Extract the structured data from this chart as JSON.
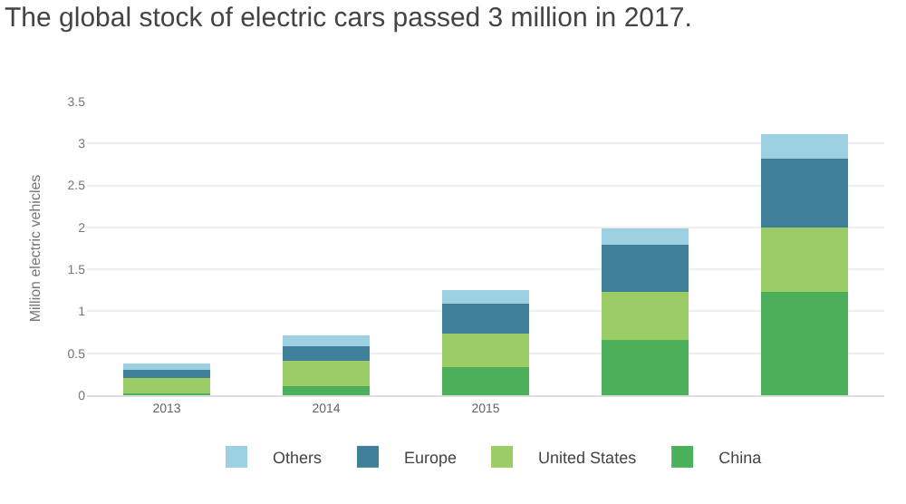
{
  "chart_data": {
    "type": "bar",
    "title": "The global stock of electric cars passed 3 million in 2017.",
    "ylabel": "Million electric vehicles",
    "categories": [
      "2013",
      "2014",
      "2015",
      null,
      null
    ],
    "stacked": true,
    "series": [
      {
        "name": "China",
        "color": "#4caf5a",
        "values": [
          0.02,
          0.11,
          0.33,
          0.66,
          1.23
        ]
      },
      {
        "name": "United States",
        "color": "#9ccc65",
        "values": [
          0.19,
          0.3,
          0.4,
          0.57,
          0.77
        ]
      },
      {
        "name": "Europe",
        "color": "#3f7f9a",
        "values": [
          0.09,
          0.17,
          0.36,
          0.56,
          0.82
        ]
      },
      {
        "name": "Others",
        "color": "#9dd0e0",
        "values": [
          0.08,
          0.13,
          0.16,
          0.2,
          0.29
        ]
      }
    ],
    "ylim": [
      0,
      3.5
    ],
    "yticks": [
      0,
      0.5,
      1,
      1.5,
      2,
      2.5,
      3,
      3.5
    ],
    "grid": "y",
    "legend": "bottom"
  }
}
